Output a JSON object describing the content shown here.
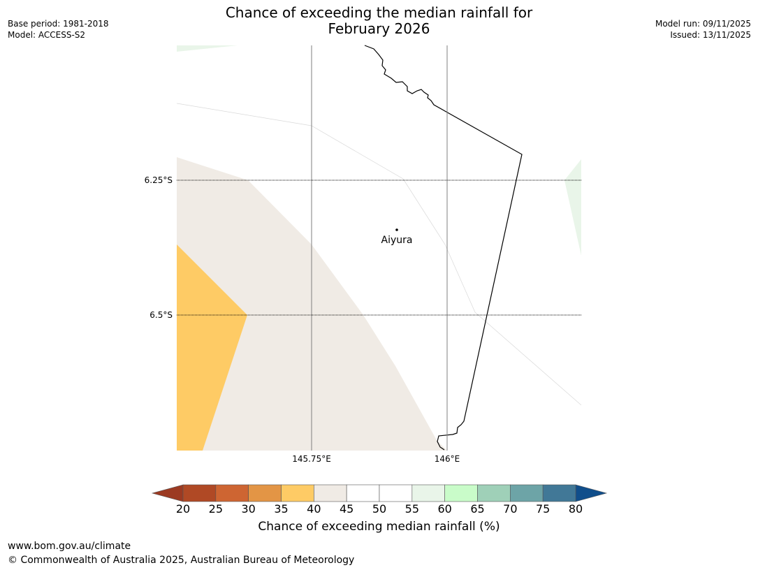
{
  "title": {
    "line1": "Chance of exceeding the median rainfall for",
    "line2": "February 2026"
  },
  "meta": {
    "base_period": "Base period: 1981-2018",
    "model": "Model: ACCESS-S2",
    "model_run": "Model run: 09/11/2025",
    "issued": "Issued: 13/11/2025"
  },
  "map": {
    "longitude_labels": [
      "145.75°E",
      "146°E"
    ],
    "latitude_labels": [
      "6.25°S",
      "6.5°S"
    ],
    "place": {
      "name": "Aiyura"
    },
    "colors": {
      "land_outline": "#000000",
      "gridline": "#7f7f7f",
      "band_35_40": "#fecb65",
      "band_40_45": "#f0ebe5",
      "band_55_60": "#e9f5e9"
    }
  },
  "colorbar": {
    "ticks": [
      "20",
      "25",
      "30",
      "35",
      "40",
      "45",
      "50",
      "55",
      "60",
      "65",
      "70",
      "75",
      "80"
    ],
    "under_color": "#9c3a22",
    "over_color": "#104e8b",
    "bins": [
      {
        "range": "20-25",
        "color": "#b04925"
      },
      {
        "range": "25-30",
        "color": "#ce6532"
      },
      {
        "range": "30-35",
        "color": "#e39545"
      },
      {
        "range": "35-40",
        "color": "#fecb65"
      },
      {
        "range": "40-45",
        "color": "#f0ebe5"
      },
      {
        "range": "45-50",
        "color": "#ffffff"
      },
      {
        "range": "50-55",
        "color": "#ffffff"
      },
      {
        "range": "55-60",
        "color": "#e9f5e9"
      },
      {
        "range": "60-65",
        "color": "#c9fcc9"
      },
      {
        "range": "65-70",
        "color": "#9fd0b8"
      },
      {
        "range": "70-75",
        "color": "#6da4a7"
      },
      {
        "range": "75-80",
        "color": "#417897"
      }
    ],
    "label": "Chance of exceeding median rainfall (%)"
  },
  "footer": {
    "url": "www.bom.gov.au/climate",
    "copyright": "© Commonwealth of Australia 2025, Australian Bureau of Meteorology"
  }
}
